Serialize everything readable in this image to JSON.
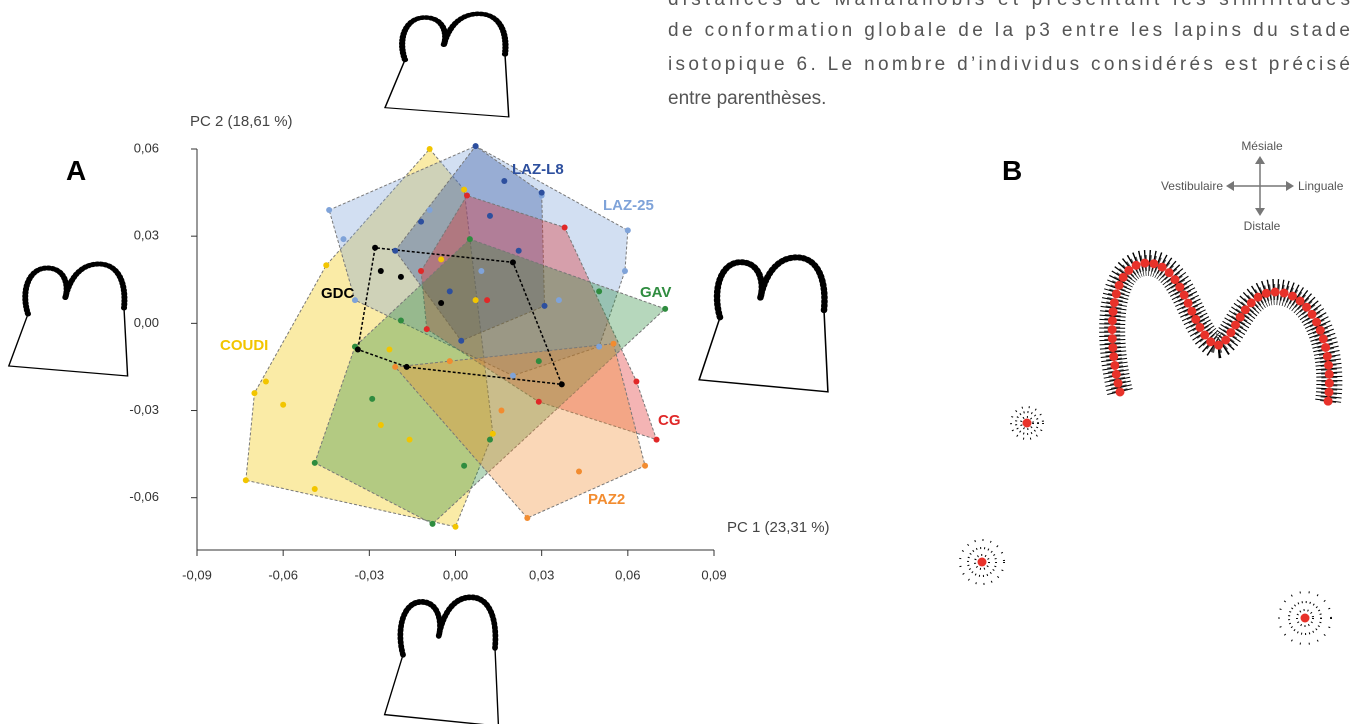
{
  "caption": {
    "lines": [
      "distances de Mahalanobis et présentant les similitudes",
      "de conformation globale de la p3 entre les lapins du stade",
      "isotopique 6. Le nombre d’individus considérés est précisé",
      "entre parenthèses."
    ]
  },
  "panel_labels": [
    "A",
    "B"
  ],
  "compass": {
    "mesial": "Mésiale",
    "distal": "Distale",
    "buccal": "Vestibulaire",
    "lingual": "Linguale"
  },
  "chart_data": {
    "type": "scatter",
    "xlabel": "PC 1 (23,31 %)",
    "ylabel": "PC 2 (18,61 %)",
    "xlim": [
      -0.09,
      0.09
    ],
    "ylim": [
      -0.078,
      0.06
    ],
    "xticks": [
      {
        "value": -0.09,
        "label": "-0,09"
      },
      {
        "value": -0.06,
        "label": "-0,06"
      },
      {
        "value": -0.03,
        "label": "-0,03"
      },
      {
        "value": 0,
        "label": "0,00"
      },
      {
        "value": 0.03,
        "label": "0,03"
      },
      {
        "value": 0.06,
        "label": "0,06"
      },
      {
        "value": 0.09,
        "label": "0,09"
      }
    ],
    "yticks": [
      {
        "value": -0.06,
        "label": "-0,06"
      },
      {
        "value": -0.03,
        "label": "-0,03"
      },
      {
        "value": 0,
        "label": "0,00"
      },
      {
        "value": 0.03,
        "label": "0,03"
      },
      {
        "value": 0.06,
        "label": "0,06"
      }
    ],
    "hulls": true,
    "series": [
      {
        "name": "COUDI",
        "color": "#f2c500",
        "filled": true,
        "x": [
          -0.009,
          -0.045,
          -0.066,
          -0.07,
          -0.073,
          -0.049,
          0.0,
          0.013,
          0.007,
          -0.023,
          -0.026,
          -0.016,
          -0.06,
          0.003,
          -0.005
        ],
        "y": [
          0.06,
          0.02,
          -0.02,
          -0.024,
          -0.054,
          -0.057,
          -0.07,
          -0.038,
          0.008,
          -0.009,
          -0.035,
          -0.04,
          -0.028,
          0.046,
          0.022
        ]
      },
      {
        "name": "LAZ-25",
        "color": "#7fa3d9",
        "filled": true,
        "x": [
          -0.044,
          0.007,
          0.03,
          0.06,
          0.059,
          0.05,
          0.02,
          -0.035,
          -0.039,
          -0.009,
          0.009,
          0.036
        ],
        "y": [
          0.039,
          0.061,
          0.044,
          0.032,
          0.018,
          -0.008,
          -0.018,
          0.008,
          0.029,
          0.039,
          0.018,
          0.008
        ]
      },
      {
        "name": "LAZ-L8",
        "color": "#2d4f9e",
        "filled": true,
        "x": [
          0.007,
          0.03,
          0.017,
          -0.012,
          -0.021,
          -0.002,
          0.022,
          0.031,
          0.002,
          0.012
        ],
        "y": [
          0.061,
          0.045,
          0.049,
          0.035,
          0.025,
          0.011,
          0.025,
          0.006,
          -0.006,
          0.037
        ]
      },
      {
        "name": "CG",
        "color": "#e02828",
        "filled": true,
        "x": [
          0.038,
          0.07,
          0.029,
          -0.012,
          0.004,
          -0.01,
          0.063,
          0.011
        ],
        "y": [
          0.033,
          -0.04,
          -0.027,
          0.018,
          0.044,
          -0.002,
          -0.02,
          0.008
        ]
      },
      {
        "name": "GAV",
        "color": "#2f8c3f",
        "filled": true,
        "x": [
          0.073,
          -0.008,
          -0.049,
          -0.035,
          0.005,
          0.05,
          0.012,
          0.003,
          -0.019,
          0.029,
          -0.029
        ],
        "y": [
          0.005,
          -0.069,
          -0.048,
          -0.008,
          0.029,
          0.011,
          -0.04,
          -0.049,
          0.001,
          -0.013,
          -0.026
        ]
      },
      {
        "name": "PAZ2",
        "color": "#f28c30",
        "filled": true,
        "x": [
          0.066,
          0.025,
          -0.021,
          0.055,
          0.016,
          0.043,
          -0.002
        ],
        "y": [
          -0.049,
          -0.067,
          -0.015,
          -0.007,
          -0.03,
          -0.051,
          -0.013
        ]
      },
      {
        "name": "GDC",
        "color": "#000000",
        "filled": false,
        "x": [
          -0.028,
          0.02,
          0.037,
          -0.034,
          -0.017,
          -0.019,
          -0.005,
          -0.026
        ],
        "y": [
          0.026,
          0.021,
          -0.021,
          -0.009,
          -0.015,
          0.016,
          0.007,
          0.018
        ]
      }
    ]
  }
}
